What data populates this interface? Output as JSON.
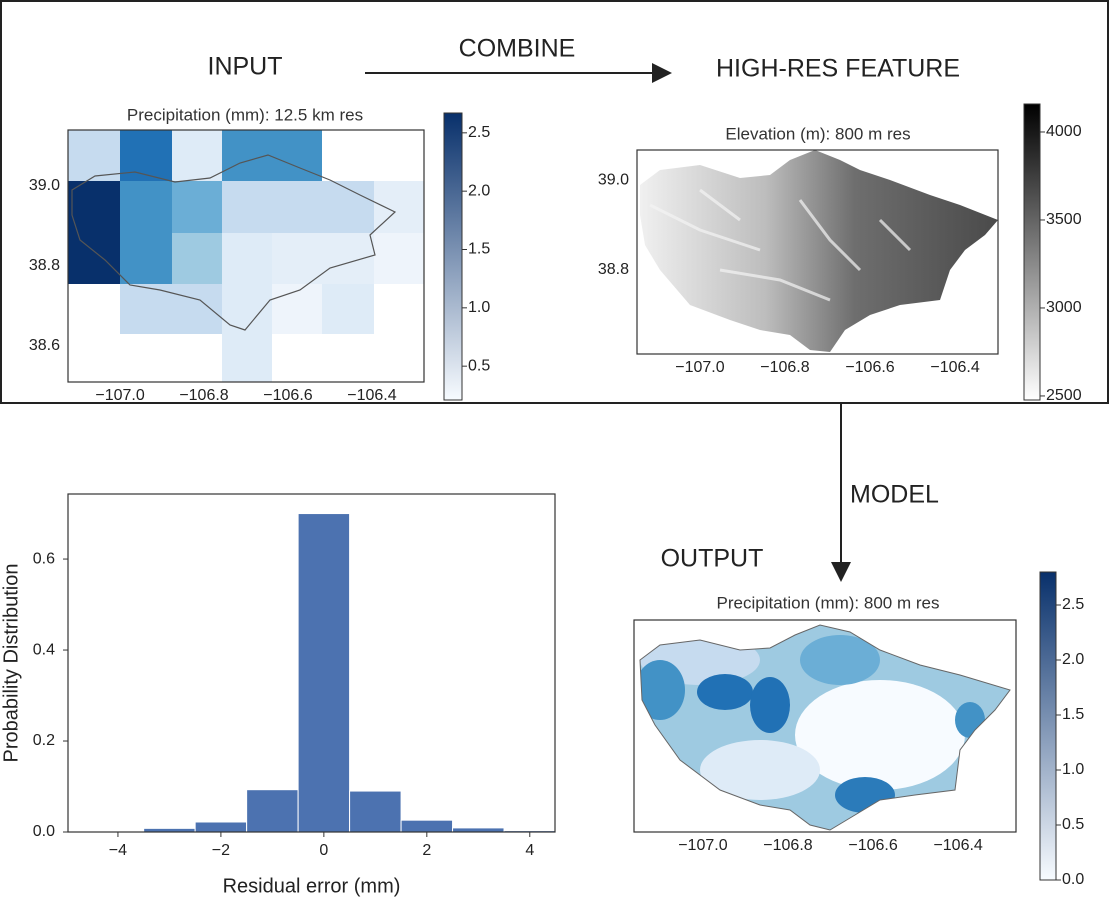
{
  "labels": {
    "input": "INPUT",
    "combine": "COMBINE",
    "high_res": "HIGH-RES FEATURE",
    "model": "MODEL",
    "output": "OUTPUT"
  },
  "chart_data": [
    {
      "type": "map",
      "title": "Precipitation (mm): 12.5 km res",
      "xlim": [
        -107.124,
        -106.276
      ],
      "xticks": [
        {
          "value": -107.0,
          "label": "−107.0"
        },
        {
          "value": -106.8,
          "label": "−106.8"
        },
        {
          "value": -106.6,
          "label": "−106.6"
        },
        {
          "value": -106.4,
          "label": "−106.4"
        }
      ],
      "ylim": [
        38.51,
        39.14
      ],
      "yticks": [
        {
          "value": 39.0,
          "label": "39.0"
        },
        {
          "value": 38.8,
          "label": "38.8"
        },
        {
          "value": 38.6,
          "label": "38.6"
        }
      ],
      "colorbar": {
        "colors": [
          "#f7fbff",
          "#08306b"
        ],
        "lim": [
          0.21,
          2.67
        ],
        "ticks": [
          2.5,
          {
            "value": 2,
            "label": "2.0"
          },
          1.5,
          {
            "value": 1,
            "label": "1.0"
          },
          0.5
        ]
      }
    },
    {
      "type": "map",
      "title": "Elevation (m): 800 m res",
      "xlim": [
        -107.148,
        -106.299
      ],
      "xticks": [
        {
          "value": -107.0,
          "label": "−107.0"
        },
        {
          "value": -106.8,
          "label": "−106.8"
        },
        {
          "value": -106.6,
          "label": "−106.6"
        },
        {
          "value": -106.4,
          "label": "−106.4"
        }
      ],
      "ylim": [
        38.613,
        39.067
      ],
      "yticks": [
        {
          "value": 39.0,
          "label": "39.0"
        },
        {
          "value": 38.8,
          "label": "38.8"
        }
      ],
      "colorbar": {
        "colors": [
          "#ffffff",
          "#000000"
        ],
        "lim": [
          2477,
          4159
        ],
        "ticks": [
          4000,
          3500,
          3000,
          2500
        ]
      }
    },
    {
      "type": "map",
      "title": "Precipitation (mm): 800 m res",
      "xlim": [
        -107.162,
        -106.264
      ],
      "xticks": [
        {
          "value": -107.0,
          "label": "−107.0"
        },
        {
          "value": -106.8,
          "label": "−106.8"
        },
        {
          "value": -106.6,
          "label": "−106.6"
        },
        {
          "value": -106.4,
          "label": "−106.4"
        }
      ],
      "colorbar": {
        "colors": [
          "#f7fbff",
          "#08306b"
        ],
        "lim": [
          0,
          2.8
        ],
        "ticks": [
          2.5,
          {
            "value": 2,
            "label": "2.0"
          },
          1.5,
          {
            "value": 1,
            "label": "1.0"
          },
          0.5,
          {
            "value": 0,
            "label": "0.0"
          }
        ]
      }
    },
    {
      "type": "histogram",
      "xlabel": "Residual error (mm)",
      "ylabel": "Probability Distribution",
      "color": "#4c72b0",
      "bins": [
        -4.5,
        -3.5,
        -2.5,
        -1.5,
        -0.5,
        0.5,
        1.5,
        2.5,
        3.5,
        4.5
      ],
      "values": [
        0.002,
        0.008,
        0.022,
        0.093,
        0.7,
        0.09,
        0.026,
        0.009,
        0.003
      ],
      "xlim": [
        -4.97,
        4.49
      ],
      "xticks": [
        {
          "value": -4,
          "label": "−4"
        },
        {
          "value": -2,
          "label": "−2"
        },
        0,
        2,
        4
      ],
      "ylim": [
        0,
        0.743
      ],
      "yticks": [
        {
          "value": 0,
          "label": "0.0"
        },
        0.2,
        0.4,
        0.6
      ]
    }
  ]
}
